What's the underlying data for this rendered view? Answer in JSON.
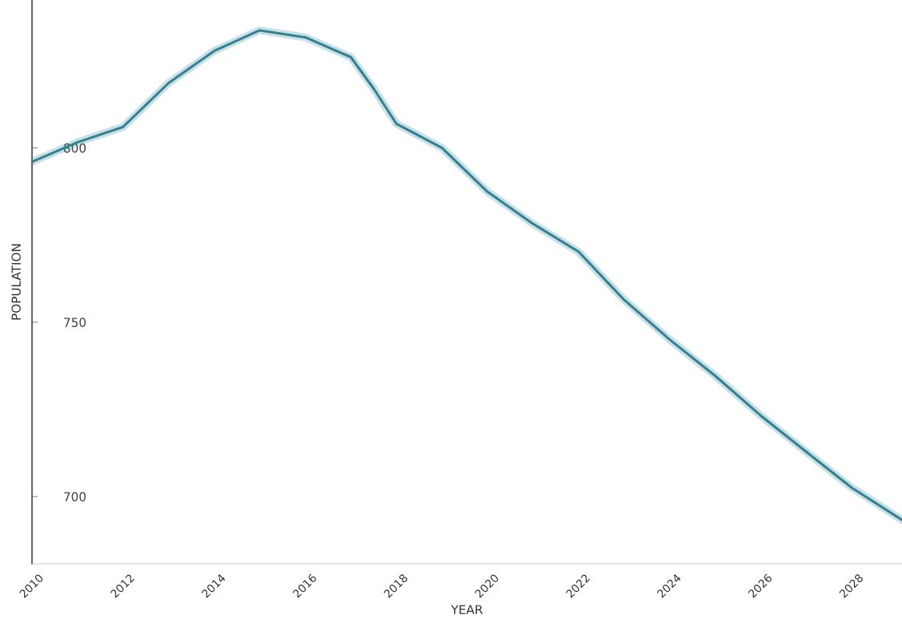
{
  "chart_data": {
    "type": "line",
    "xlabel": "YEAR",
    "ylabel": "POPULATION",
    "x": [
      2010,
      2011,
      2012,
      2013,
      2014,
      2015,
      2016,
      2017,
      2017.5,
      2018,
      2019,
      2020,
      2021,
      2022,
      2023,
      2024,
      2025,
      2026,
      2027,
      2028,
      2029.1
    ],
    "series": [
      {
        "color": "#2e8494",
        "values": [
          796,
          801.6,
          806,
          818.6,
          827.8,
          833.7,
          831.7,
          826,
          817,
          806.9,
          800,
          787.4,
          778.2,
          770.2,
          756.4,
          745,
          734.6,
          723.2,
          712.8,
          702.5,
          693.3
        ]
      }
    ],
    "xlim": [
      2010,
      2029.1
    ],
    "xticks": [
      2010,
      2012,
      2014,
      2016,
      2018,
      2020,
      2022,
      2024,
      2026,
      2028
    ],
    "ylim": [
      680.7,
      842.4
    ],
    "yticks": [
      700,
      750,
      800
    ],
    "grid": false,
    "legend": false,
    "marker": "none",
    "line_style": "solid"
  }
}
